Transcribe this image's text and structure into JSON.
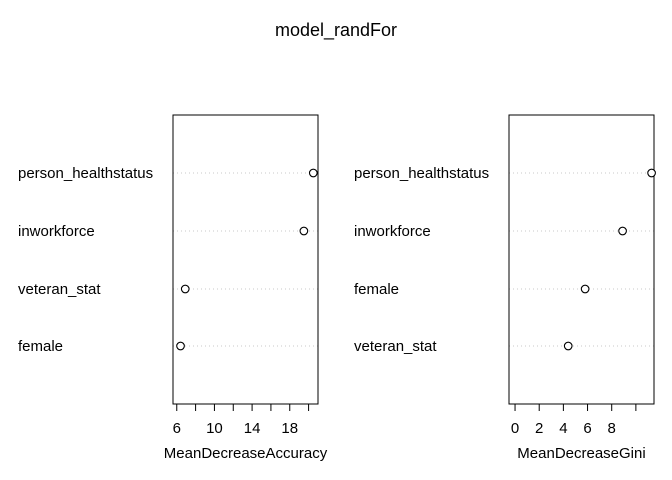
{
  "title": "model_randFor",
  "chart_data": [
    {
      "type": "scatter",
      "subtype": "dotchart",
      "xlabel": "MeanDecreaseAccuracy",
      "ylabel": "",
      "xlim": [
        5.6,
        21.0
      ],
      "xticks": [
        6,
        8,
        10,
        12,
        14,
        16,
        18,
        20
      ],
      "xtick_labels": [
        "6",
        "",
        "10",
        "",
        "14",
        "",
        "18",
        ""
      ],
      "grid": "dotted horizontal guides",
      "categories": [
        "person_healthstatus",
        "inworkforce",
        "veteran_stat",
        "female"
      ],
      "values": [
        20.5,
        19.5,
        6.9,
        6.4
      ]
    },
    {
      "type": "scatter",
      "subtype": "dotchart",
      "xlabel": "MeanDecreaseGini",
      "ylabel": "",
      "xlim": [
        -0.5,
        11.5
      ],
      "xticks": [
        0,
        2,
        4,
        6,
        8,
        10
      ],
      "xtick_labels": [
        "0",
        "2",
        "4",
        "6",
        "8",
        ""
      ],
      "grid": "dotted horizontal guides",
      "categories": [
        "person_healthstatus",
        "inworkforce",
        "female",
        "veteran_stat"
      ],
      "values": [
        11.3,
        8.9,
        5.8,
        4.4
      ]
    }
  ]
}
